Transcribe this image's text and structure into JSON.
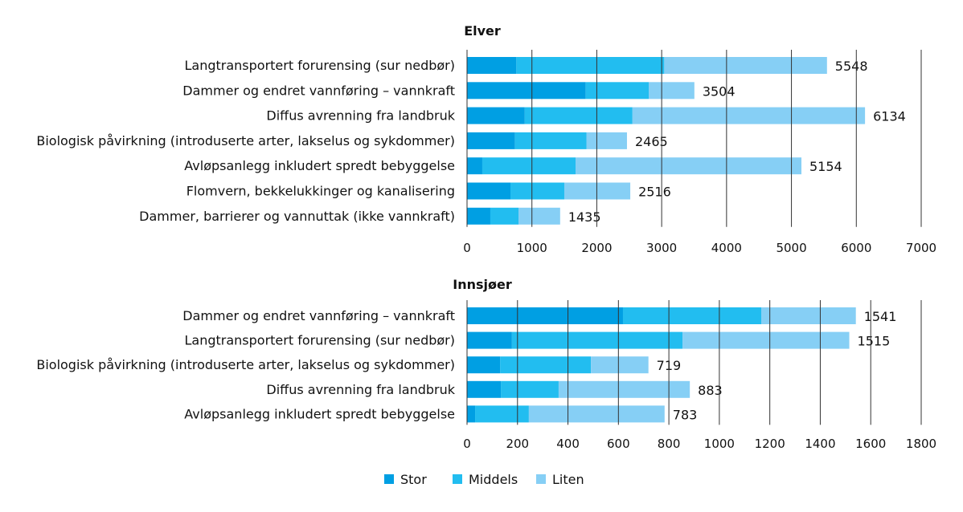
{
  "colors": {
    "Stor": "#009fe3",
    "Middels": "#22bdf0",
    "Liten": "#86cff5"
  },
  "legend": [
    "Stor",
    "Middels",
    "Liten"
  ],
  "chart_data": [
    {
      "type": "bar",
      "orientation": "horizontal",
      "stacked": true,
      "title": "Elver",
      "xlim": [
        0,
        7000
      ],
      "xticks": [
        0,
        1000,
        2000,
        3000,
        4000,
        5000,
        6000,
        7000
      ],
      "grid": true,
      "legend_position": "bottom",
      "categories": [
        "Langtransportert forurensing (sur nedbør)",
        "Dammer og endret vannføring – vannkraft",
        "Diffus avrenning fra landbruk",
        "Biologisk påvirkning (introduserte arter, lakselus og sykdommer)",
        "Avløpsanlegg inkludert spredt bebyggelse",
        "Flomvern, bekkelukkinger og kanalisering",
        "Dammer, barrierer og vannuttak (ikke vannkraft)"
      ],
      "series": [
        {
          "name": "Stor",
          "values": [
            760,
            1830,
            890,
            740,
            235,
            669,
            359
          ]
        },
        {
          "name": "Middels",
          "values": [
            2280,
            970,
            1660,
            1100,
            1438,
            830,
            434
          ]
        },
        {
          "name": "Liten",
          "values": [
            2508,
            704,
            3584,
            625,
            3481,
            1017,
            642
          ]
        }
      ],
      "totals": [
        5548,
        3504,
        6134,
        2465,
        5154,
        2516,
        1435
      ]
    },
    {
      "type": "bar",
      "orientation": "horizontal",
      "stacked": true,
      "title": "Innsjøer",
      "xlim": [
        0,
        1800
      ],
      "xticks": [
        0,
        200,
        400,
        600,
        800,
        1000,
        1200,
        1400,
        1600,
        1800
      ],
      "grid": true,
      "legend_position": "bottom",
      "categories": [
        "Dammer og endret vannføring – vannkraft",
        "Langtransportert forurensing (sur nedbør)",
        "Biologisk påvirkning (introduserte arter, lakselus og sykdommer)",
        "Diffus avrenning fra landbruk",
        "Avløpsanlegg inkludert spredt bebyggelse"
      ],
      "series": [
        {
          "name": "Stor",
          "values": [
            618,
            178,
            131,
            134,
            32
          ]
        },
        {
          "name": "Middels",
          "values": [
            548,
            676,
            360,
            229,
            213
          ]
        },
        {
          "name": "Liten",
          "values": [
            375,
            661,
            228,
            520,
            538
          ]
        }
      ],
      "totals": [
        1541,
        1515,
        719,
        883,
        783
      ]
    }
  ]
}
